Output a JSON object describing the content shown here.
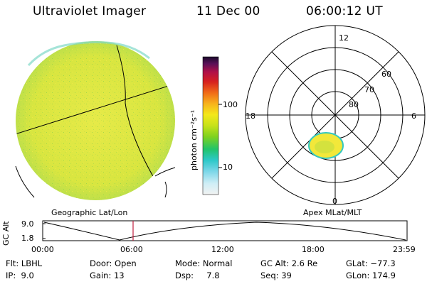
{
  "header": {
    "instrument": "Ultraviolet Imager",
    "date": "11 Dec 00",
    "time": "06:00:12 UT"
  },
  "colorbar": {
    "label": "photon cm⁻²s⁻¹",
    "ticks": [
      "100",
      "10"
    ]
  },
  "polar": {
    "mlt_labels": [
      "12",
      "18",
      "6",
      "0"
    ],
    "mlat_labels": [
      "60",
      "70",
      "80"
    ]
  },
  "panel_labels": {
    "left": "Geographic Lat/Lon",
    "right": "Apex MLat/MLT"
  },
  "timeline": {
    "ylabel": "GC Alt",
    "y_ticks": [
      "9.0",
      "1.8"
    ],
    "x_ticks": [
      "00:00",
      "06:00",
      "12:00",
      "18:00",
      "23:59"
    ],
    "current_time": "06:00"
  },
  "footer": {
    "row1": [
      "Flt: LBHL",
      "Door: Open",
      "Mode: Normal",
      "GC Alt: 2.6 Re",
      "GLat: −77.3"
    ],
    "row2": [
      "IP:  9.0",
      "Gain: 13",
      "Dsp:     7.8",
      "Seq: 39",
      "GLon: 174.9"
    ]
  }
}
